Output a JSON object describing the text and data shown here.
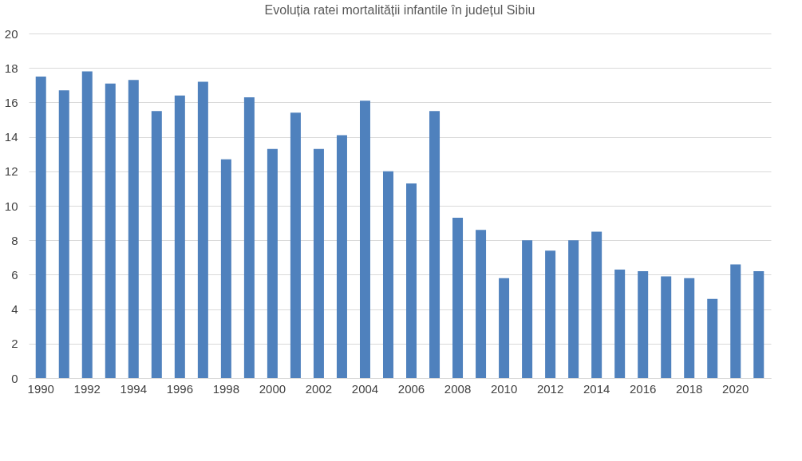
{
  "chart_data": {
    "type": "bar",
    "title": "Evoluția ratei mortalității infantile în județul Sibiu",
    "categories": [
      "1990",
      null,
      "1992",
      null,
      "1994",
      null,
      "1996",
      null,
      "1998",
      null,
      "2000",
      null,
      "2002",
      null,
      "2004",
      null,
      "2006",
      null,
      "2008",
      null,
      "2010",
      null,
      "2012",
      null,
      "2014",
      null,
      "2016",
      null,
      "2018",
      null,
      "2020",
      null
    ],
    "values": [
      17.5,
      16.7,
      17.8,
      17.1,
      17.3,
      15.5,
      16.4,
      17.2,
      12.7,
      16.3,
      13.3,
      15.4,
      13.3,
      14.1,
      16.1,
      12.0,
      11.3,
      15.5,
      9.3,
      8.6,
      5.8,
      8.0,
      7.4,
      8.0,
      8.5,
      6.3,
      6.2,
      5.9,
      5.8,
      4.6,
      6.6,
      6.2
    ],
    "color": "#4f81bd",
    "ylim": [
      0,
      20
    ],
    "yticks": [
      0,
      2,
      4,
      6,
      8,
      10,
      12,
      14,
      16,
      18,
      20
    ],
    "grid": "y"
  }
}
